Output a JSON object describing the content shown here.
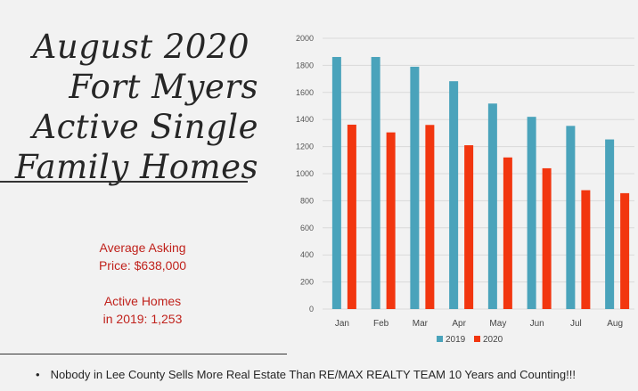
{
  "title": {
    "lines": [
      "August 2020",
      "Fort Myers",
      "Active Single",
      "Family Homes"
    ]
  },
  "stats": {
    "asking_line1": "Average Asking",
    "asking_line2": "Price: $638,000",
    "active_line1": "Active Homes",
    "active_line2": "in 2019: 1,253"
  },
  "footer": {
    "bullet": "•",
    "text": "Nobody in Lee County Sells More Real Estate Than RE/MAX REALTY  TEAM  10 Years and Counting!!!"
  },
  "colors": {
    "series_2019": "#4aa3bb",
    "series_2020": "#f2360f"
  },
  "chart_data": {
    "type": "bar",
    "categories": [
      "Jan",
      "Feb",
      "Mar",
      "Apr",
      "May",
      "Jun",
      "Jul",
      "Aug"
    ],
    "series": [
      {
        "name": "2019",
        "values": [
          1862,
          1862,
          1790,
          1683,
          1518,
          1420,
          1353,
          1253
        ]
      },
      {
        "name": "2020",
        "values": [
          1362,
          1305,
          1360,
          1210,
          1120,
          1040,
          878,
          856
        ]
      }
    ],
    "ylim": [
      0,
      2000
    ],
    "yticks": [
      0,
      200,
      400,
      600,
      800,
      1000,
      1200,
      1400,
      1600,
      1800,
      2000
    ],
    "grid": true,
    "legend_position": "bottom"
  }
}
